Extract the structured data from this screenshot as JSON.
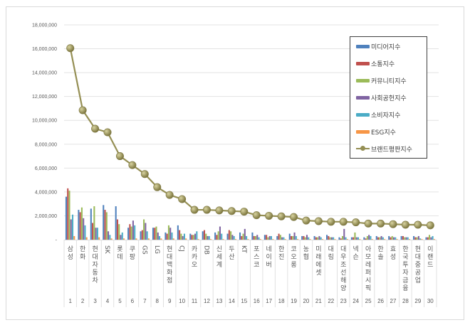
{
  "chart_data": {
    "type": "bar+line",
    "title": "",
    "xlabel": "",
    "ylabel": "",
    "ylim": [
      0,
      18000000
    ],
    "yticks": [
      "-",
      "2,000,000",
      "4,000,000",
      "6,000,000",
      "8,000,000",
      "10,000,000",
      "12,000,000",
      "14,000,000",
      "16,000,000",
      "18,000,000"
    ],
    "grid": true,
    "legend_position": "right-top-inside",
    "categories": [
      "삼성",
      "한화",
      "현대자동차",
      "SK",
      "롯데",
      "쿠팡",
      "GS",
      "LG",
      "현대백화점",
      "CJ",
      "카카오",
      "DB",
      "신세계",
      "두산",
      "KT",
      "포스코",
      "네이버",
      "한진",
      "코오롱",
      "농협",
      "미래에셋",
      "대림",
      "대우조선해양",
      "넥슨",
      "아모레퍼시픽",
      "한솔",
      "효성",
      "한국투자금융",
      "현대중공업",
      "이랜드"
    ],
    "ranks": [
      "1",
      "2",
      "3",
      "4",
      "5",
      "6",
      "7",
      "8",
      "9",
      "10",
      "11",
      "12",
      "13",
      "14",
      "15",
      "16",
      "17",
      "18",
      "19",
      "20",
      "21",
      "22",
      "23",
      "24",
      "25",
      "26",
      "27",
      "28",
      "29",
      "30"
    ],
    "series": [
      {
        "name": "미디어지수",
        "type": "bar",
        "color": "#4f81bd",
        "values": [
          3600000,
          2500000,
          2600000,
          2900000,
          2800000,
          1000000,
          700000,
          1000000,
          600000,
          1200000,
          500000,
          700000,
          600000,
          500000,
          600000,
          600000,
          400000,
          300000,
          500000,
          300000,
          300000,
          400000,
          200000,
          200000,
          200000,
          300000,
          300000,
          300000,
          300000,
          200000
        ]
      },
      {
        "name": "소통지수",
        "type": "bar",
        "color": "#c0504d",
        "values": [
          4300000,
          2300000,
          1400000,
          2500000,
          1700000,
          1300000,
          800000,
          1000000,
          500000,
          800000,
          400000,
          800000,
          400000,
          800000,
          300000,
          300000,
          400000,
          500000,
          300000,
          300000,
          200000,
          300000,
          100000,
          200000,
          100000,
          200000,
          200000,
          300000,
          200000,
          200000
        ]
      },
      {
        "name": "커뮤니티지수",
        "type": "bar",
        "color": "#9bbb59",
        "values": [
          4100000,
          2700000,
          2800000,
          2300000,
          1300000,
          1100000,
          1700000,
          1100000,
          1200000,
          500000,
          400000,
          500000,
          700000,
          700000,
          500000,
          300000,
          200000,
          400000,
          300000,
          200000,
          200000,
          200000,
          300000,
          600000,
          300000,
          200000,
          300000,
          200000,
          200000,
          400000
        ]
      },
      {
        "name": "사회공헌지수",
        "type": "bar",
        "color": "#8064a2",
        "values": [
          1700000,
          1800000,
          1000000,
          700000,
          400000,
          1600000,
          1400000,
          600000,
          1000000,
          300000,
          500000,
          300000,
          1100000,
          400000,
          900000,
          400000,
          300000,
          200000,
          600000,
          400000,
          300000,
          200000,
          900000,
          200000,
          400000,
          300000,
          200000,
          200000,
          300000,
          200000
        ]
      },
      {
        "name": "소비자지수",
        "type": "bar",
        "color": "#4bacc6",
        "values": [
          2100000,
          1200000,
          1000000,
          400000,
          600000,
          1200000,
          700000,
          300000,
          600000,
          500000,
          700000,
          300000,
          500000,
          300000,
          300000,
          200000,
          300000,
          200000,
          300000,
          200000,
          200000,
          200000,
          200000,
          200000,
          300000,
          200000,
          200000,
          200000,
          100000,
          300000
        ]
      },
      {
        "name": "ESG지수",
        "type": "bar",
        "color": "#f79646",
        "values": [
          300000,
          200000,
          200000,
          100000,
          100000,
          100000,
          100000,
          100000,
          100000,
          100000,
          50000,
          50000,
          50000,
          50000,
          50000,
          50000,
          50000,
          50000,
          50000,
          50000,
          50000,
          50000,
          50000,
          50000,
          50000,
          50000,
          50000,
          50000,
          50000,
          50000
        ]
      },
      {
        "name": "브랜드평판지수",
        "type": "line",
        "color": "#958f54",
        "values": [
          16050000,
          10850000,
          9300000,
          9000000,
          7000000,
          6250000,
          5500000,
          4400000,
          3750000,
          3400000,
          2500000,
          2500000,
          2450000,
          2400000,
          2350000,
          2050000,
          2000000,
          1950000,
          1900000,
          1600000,
          1550000,
          1500000,
          1500000,
          1450000,
          1350000,
          1350000,
          1300000,
          1250000,
          1250000,
          1200000
        ]
      }
    ]
  },
  "legend": {
    "items": [
      {
        "label": "미디어지수",
        "color": "#4f81bd"
      },
      {
        "label": "소통지수",
        "color": "#c0504d"
      },
      {
        "label": "커뮤니티지수",
        "color": "#9bbb59"
      },
      {
        "label": "사회공헌지수",
        "color": "#8064a2"
      },
      {
        "label": "소비자지수",
        "color": "#4bacc6"
      },
      {
        "label": "ESG지수",
        "color": "#f79646"
      },
      {
        "label": "브랜드평판지수",
        "color": "#958f54"
      }
    ]
  }
}
